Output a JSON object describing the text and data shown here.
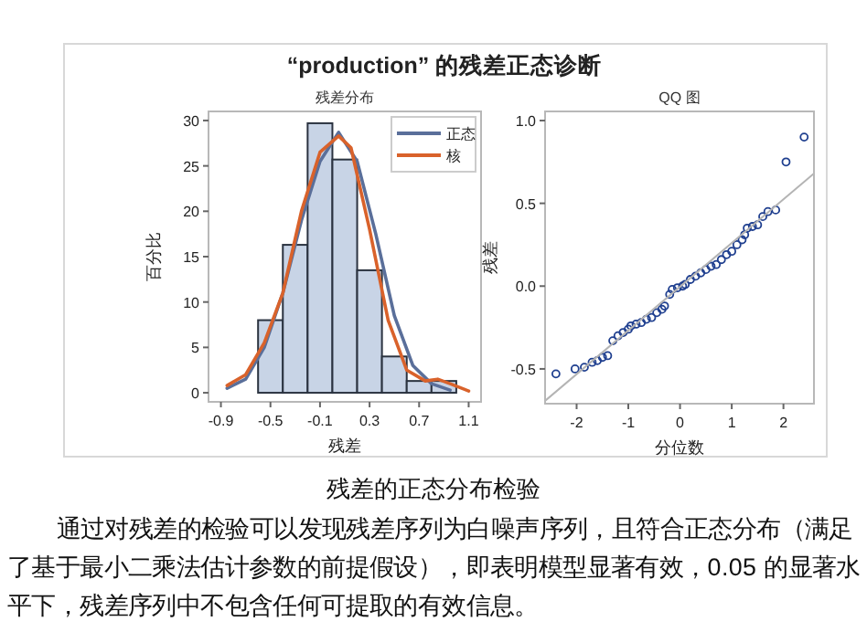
{
  "chart_data": [
    {
      "type": "histogram",
      "title": "残差分布",
      "xlabel": "残差",
      "ylabel": "百分比",
      "bins": [
        -0.6,
        -0.4,
        -0.2,
        0,
        0.2,
        0.4,
        0.6,
        0.8,
        1.0
      ],
      "values": [
        8,
        16.3,
        29.7,
        25.7,
        13.5,
        4,
        1.3,
        1.3
      ],
      "color": "#c8d4e6",
      "series": [
        {
          "name": "正态",
          "type": "line",
          "color": "#5a6f9a",
          "x": [
            -0.85,
            -0.7,
            -0.55,
            -0.4,
            -0.25,
            -0.1,
            0.05,
            0.2,
            0.35,
            0.5,
            0.65,
            0.8,
            0.95
          ],
          "values": [
            0.5,
            1.5,
            5,
            11,
            19,
            25.5,
            28.7,
            25.5,
            17.5,
            8.5,
            3,
            1,
            0.3
          ]
        },
        {
          "name": "核",
          "type": "line",
          "color": "#d9622b",
          "x": [
            -0.85,
            -0.7,
            -0.55,
            -0.4,
            -0.25,
            -0.1,
            0.05,
            0.15,
            0.3,
            0.45,
            0.6,
            0.75,
            0.85,
            0.95,
            1.1
          ],
          "values": [
            0.8,
            2,
            5.5,
            11,
            20,
            26.5,
            28.3,
            27,
            18,
            8,
            2.5,
            1.3,
            1.5,
            1,
            0.2
          ]
        }
      ],
      "xlim": [
        -1.0,
        1.2
      ],
      "ylim": [
        -1,
        31
      ],
      "xticks": [
        -0.9,
        -0.5,
        -0.1,
        0.3,
        0.7,
        1.1
      ],
      "yticks": [
        0,
        5,
        10,
        15,
        20,
        25,
        30
      ],
      "legend": "top right",
      "grid": false
    },
    {
      "type": "scatter",
      "title": "QQ 图",
      "xlabel": "分位数",
      "ylabel": "残差",
      "series": [
        {
          "type": "scatter",
          "marker": "circle",
          "color": "#1f3f8f",
          "x": [
            -2.4,
            -2.03,
            -1.85,
            -1.7,
            -1.6,
            -1.5,
            -1.4,
            -1.3,
            -1.2,
            -1.1,
            -1.0,
            -0.95,
            -0.85,
            -0.75,
            -0.65,
            -0.55,
            -0.45,
            -0.35,
            -0.3,
            -0.2,
            -0.15,
            -0.05,
            0.05,
            0.1,
            0.2,
            0.3,
            0.4,
            0.5,
            0.6,
            0.7,
            0.8,
            0.9,
            1.0,
            1.1,
            1.2,
            1.25,
            1.3,
            1.4,
            1.5,
            1.6,
            1.7,
            1.85,
            2.05,
            2.4
          ],
          "values": [
            -0.53,
            -0.5,
            -0.49,
            -0.46,
            -0.45,
            -0.43,
            -0.42,
            -0.33,
            -0.3,
            -0.28,
            -0.26,
            -0.24,
            -0.23,
            -0.22,
            -0.2,
            -0.19,
            -0.16,
            -0.14,
            -0.12,
            -0.05,
            -0.02,
            -0.01,
            0.0,
            0.01,
            0.04,
            0.06,
            0.08,
            0.1,
            0.12,
            0.13,
            0.16,
            0.19,
            0.21,
            0.25,
            0.28,
            0.31,
            0.35,
            0.36,
            0.37,
            0.42,
            0.45,
            0.46,
            0.75,
            0.9
          ]
        },
        {
          "type": "line",
          "color": "#b4b4b4",
          "x": [
            -2.6,
            2.59
          ],
          "values": [
            -0.69,
            0.68
          ]
        }
      ],
      "xlim": [
        -2.61,
        2.59
      ],
      "ylim": [
        -0.71,
        1.055
      ],
      "xticks": [
        -2,
        -1,
        0,
        1,
        2
      ],
      "yticks": [
        {
          "value": -0.5,
          "label": "-0.5"
        },
        {
          "value": 0,
          "label": "0.0"
        },
        {
          "value": 0.5,
          "label": "0.5"
        },
        {
          "value": 1,
          "label": "1.0"
        }
      ],
      "grid": false
    },
    {
      "type": "other",
      "title": "“production” 的残差正态诊断",
      "annotations": [
        "残差的正态分布检验",
        "通过对残差的检验可以发现残差序列为白噪声序列，且符合正态分布（满足了基于最小二乘法估计参数的前提假设），即表明模型显著有效，0.05 的显著水平下，残差序列中不包含任何可提取的有效信息。"
      ]
    }
  ]
}
